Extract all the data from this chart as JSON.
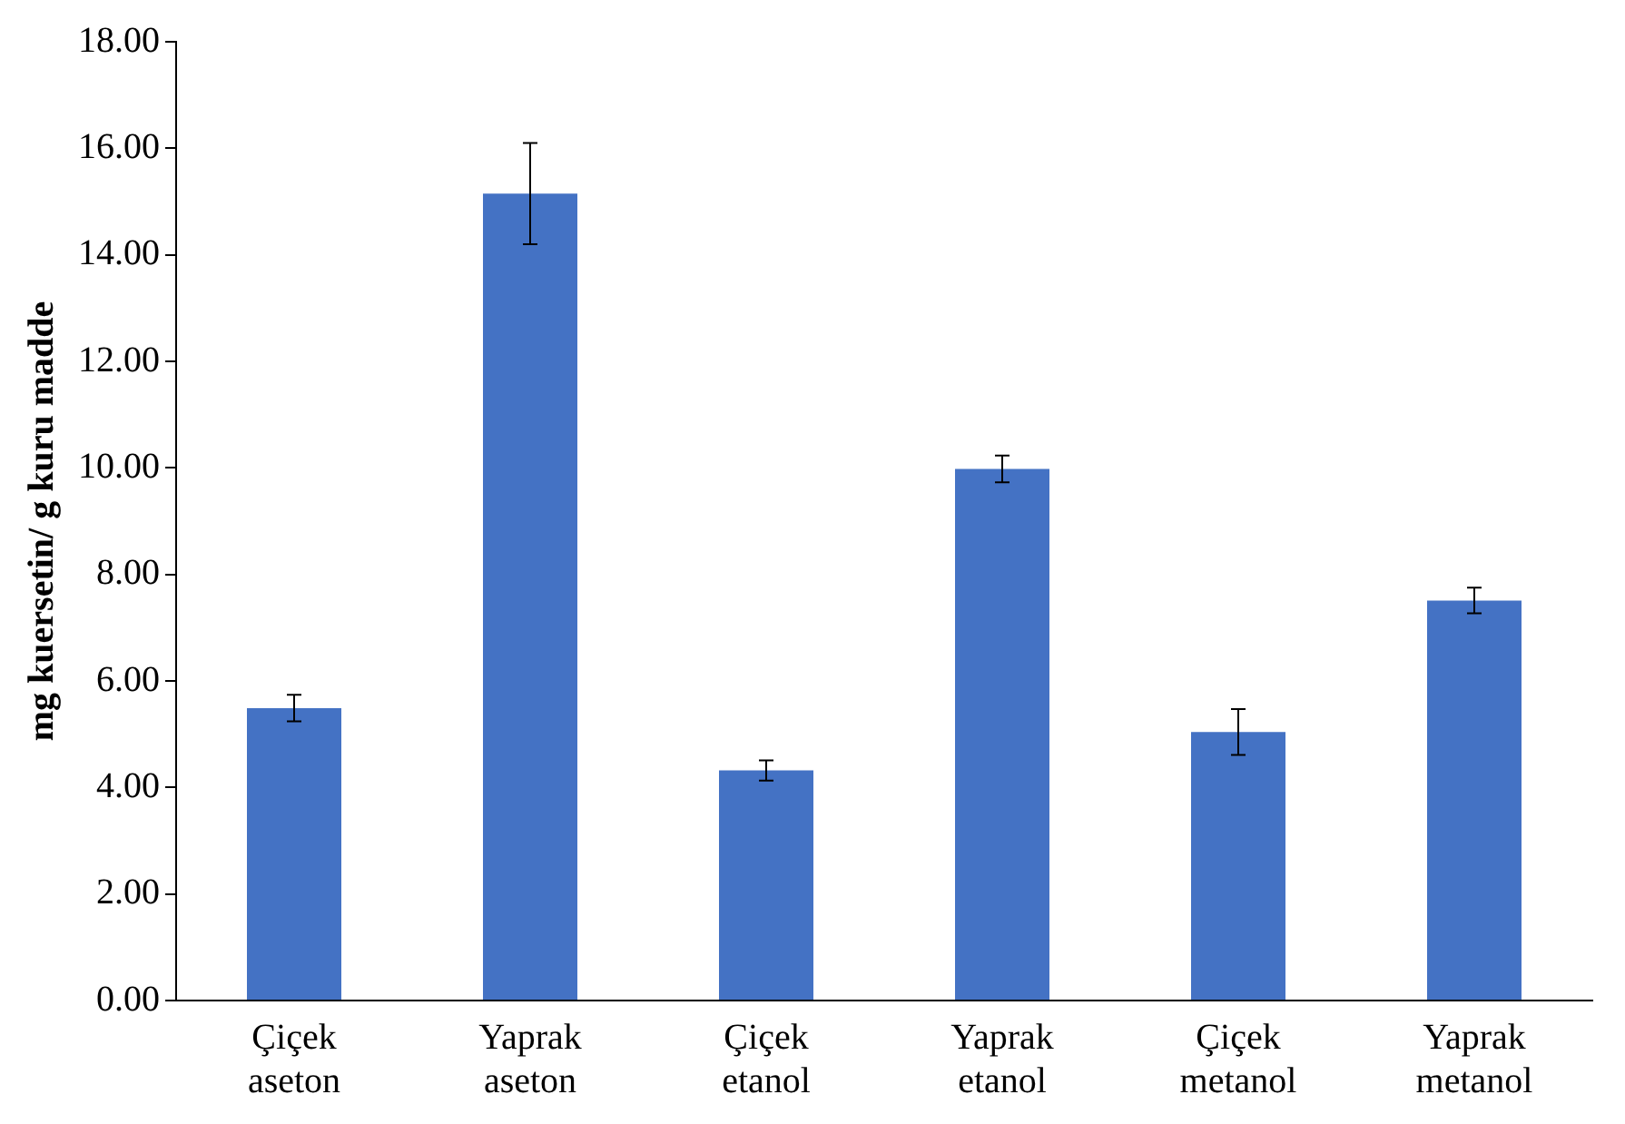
{
  "chart_data": {
    "type": "bar",
    "ylabel": "mg kuersetin/ g kuru madde",
    "categories": [
      "Çiçek aseton",
      "Yaprak aseton",
      "Çiçek etanol",
      "Yaprak etanol",
      "Çiçek metanol",
      "Yaprak metanol"
    ],
    "values": [
      5.49,
      15.15,
      4.32,
      9.98,
      5.04,
      7.51
    ],
    "errors": [
      0.25,
      0.95,
      0.19,
      0.25,
      0.43,
      0.24
    ],
    "color": "#4472c4",
    "ylim": [
      0,
      18
    ],
    "yticks": [
      {
        "value": 0,
        "label": "0.00"
      },
      {
        "value": 2,
        "label": "2.00"
      },
      {
        "value": 4,
        "label": "4.00"
      },
      {
        "value": 6,
        "label": "6.00"
      },
      {
        "value": 8,
        "label": "8.00"
      },
      {
        "value": 10,
        "label": "10.00"
      },
      {
        "value": 12,
        "label": "12.00"
      },
      {
        "value": 14,
        "label": "14.00"
      },
      {
        "value": 16,
        "label": "16.00"
      },
      {
        "value": 18,
        "label": "18.00"
      }
    ],
    "grid": false,
    "legend": false
  }
}
